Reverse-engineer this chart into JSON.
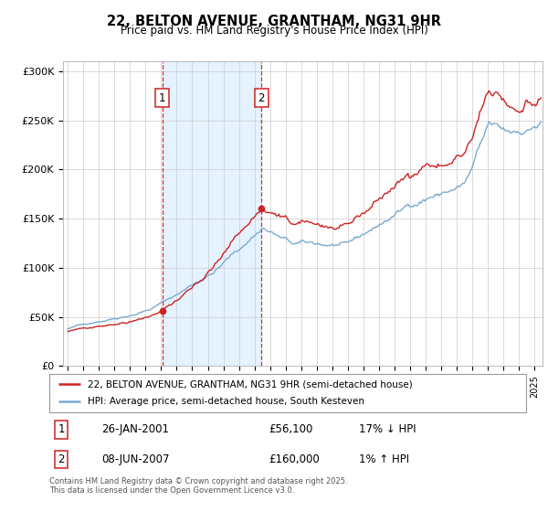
{
  "title": "22, BELTON AVENUE, GRANTHAM, NG31 9HR",
  "subtitle": "Price paid vs. HM Land Registry's House Price Index (HPI)",
  "ylim": [
    0,
    310000
  ],
  "yticks": [
    0,
    50000,
    100000,
    150000,
    200000,
    250000,
    300000
  ],
  "ytick_labels": [
    "£0",
    "£50K",
    "£100K",
    "£150K",
    "£200K",
    "£250K",
    "£300K"
  ],
  "grid_color": "#cccccc",
  "hpi_color": "#7aaad0",
  "price_color": "#cc2222",
  "sale1_date_num": 2001.07,
  "sale1_price": 56100,
  "sale1_label": "1",
  "sale2_date_num": 2007.45,
  "sale2_price": 160000,
  "sale2_label": "2",
  "legend_line1": "22, BELTON AVENUE, GRANTHAM, NG31 9HR (semi-detached house)",
  "legend_line2": "HPI: Average price, semi-detached house, South Kesteven",
  "table_row1_num": "1",
  "table_row1_date": "26-JAN-2001",
  "table_row1_price": "£56,100",
  "table_row1_hpi": "17% ↓ HPI",
  "table_row2_num": "2",
  "table_row2_date": "08-JUN-2007",
  "table_row2_price": "£160,000",
  "table_row2_hpi": "1% ↑ HPI",
  "footer": "Contains HM Land Registry data © Crown copyright and database right 2025.\nThis data is licensed under the Open Government Licence v3.0.",
  "xmin": 1994.7,
  "xmax": 2025.5
}
